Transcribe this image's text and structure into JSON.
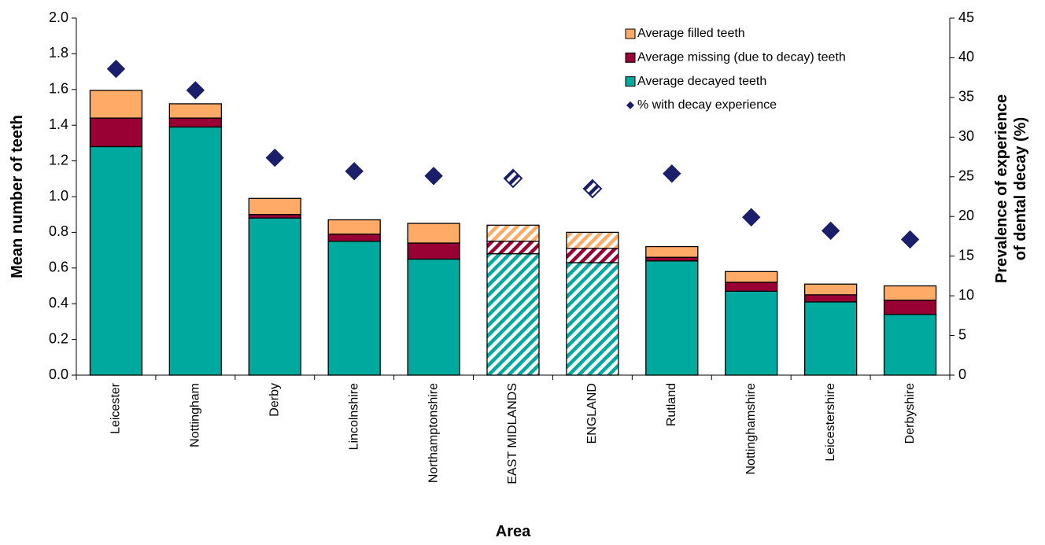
{
  "chart_data": {
    "type": "bar",
    "xlabel": "Area",
    "ylabel": "Mean number of teeth",
    "y2label": [
      "Prevalence of experience",
      "of dental decay (%)"
    ],
    "categories": [
      "Leicester",
      "Nottingham",
      "Derby",
      "Lincolnshire",
      "Northamptonshire",
      "EAST MIDLANDS",
      "ENGLAND",
      "Rutland",
      "Nottinghamshire",
      "Leicestershire",
      "Derbyshire"
    ],
    "hatched": [
      5,
      6
    ],
    "stacked": true,
    "series": [
      {
        "name": "Average decayed teeth",
        "color": "#00A99D",
        "values": [
          1.28,
          1.39,
          0.88,
          0.75,
          0.65,
          0.68,
          0.63,
          0.64,
          0.47,
          0.41,
          0.34
        ]
      },
      {
        "name": "Average missing (due to decay) teeth",
        "color": "#990033",
        "values": [
          0.16,
          0.05,
          0.02,
          0.04,
          0.09,
          0.07,
          0.08,
          0.02,
          0.05,
          0.04,
          0.08
        ]
      },
      {
        "name": "Average filled teeth",
        "color": "#FFAA66",
        "values": [
          0.155,
          0.08,
          0.09,
          0.08,
          0.11,
          0.09,
          0.09,
          0.06,
          0.06,
          0.06,
          0.08
        ]
      },
      {
        "name": "% with decay experience",
        "color": "#1B1F6B",
        "type": "scatter",
        "marker": "diamond",
        "axis": "y2",
        "values": [
          38.6,
          35.9,
          27.4,
          25.7,
          25.1,
          24.8,
          23.5,
          25.4,
          19.9,
          18.2,
          17.1
        ]
      }
    ],
    "ylim": [
      0,
      2
    ],
    "yticks": [
      {
        "value": 0,
        "label": "0.0"
      },
      0.2,
      0.4,
      0.6,
      0.8,
      {
        "value": 1,
        "label": "1.0"
      },
      1.2,
      1.4,
      1.6,
      1.8,
      {
        "value": 2,
        "label": "2.0"
      }
    ],
    "y2lim": [
      0,
      45
    ],
    "y2ticks": [
      0,
      5,
      10,
      15,
      20,
      25,
      30,
      35,
      40,
      45
    ],
    "grid": false,
    "legend": "top-right"
  }
}
